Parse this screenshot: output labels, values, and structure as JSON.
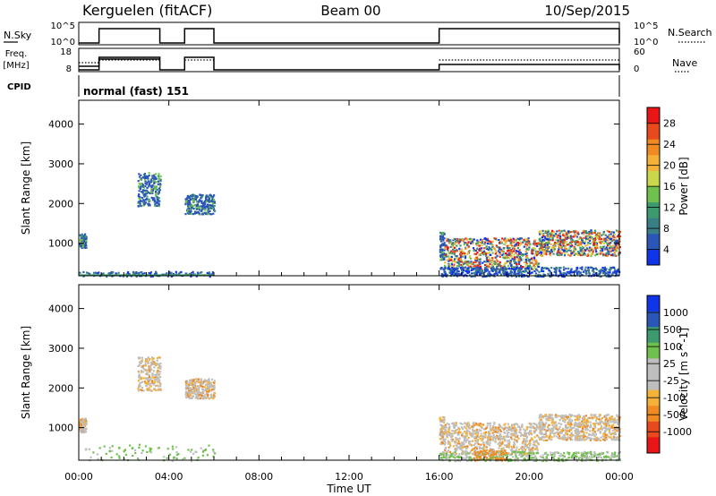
{
  "header": {
    "station": "Kerguelen (fitACF)",
    "beam": "Beam 00",
    "date": "10/Sep/2015"
  },
  "control": {
    "nsky_label": "N.Sky",
    "nsky_ticks": [
      "10^5",
      "10^0"
    ],
    "nsearch_label": "N.Search",
    "nsearch_ticks": [
      "10^5",
      "10^0"
    ],
    "freq_label_1": "Freq.",
    "freq_label_2": "[MHz]",
    "freq_ticks": [
      "18",
      "8"
    ],
    "nave_label": "Nave",
    "nave_ticks": [
      "60",
      "0"
    ],
    "cpid_label": "CPID",
    "cpid_value": "normal (fast) 151",
    "on_intervals_hours": [
      [
        0.9,
        3.6
      ],
      [
        4.7,
        6.0
      ],
      [
        16.0,
        24.0
      ]
    ]
  },
  "chart_data": [
    {
      "type": "heatmap",
      "name": "power",
      "ylabel": "Slant Range [km]",
      "yticks": [
        1000,
        2000,
        3000,
        4000
      ],
      "ylim": [
        180,
        4600
      ],
      "xlim_hours": [
        0,
        24
      ],
      "colorbar": {
        "label": "Power [dB]",
        "ticks": [
          "4",
          "8",
          "12",
          "16",
          "20",
          "24",
          "28"
        ],
        "colors": [
          "#1034e8",
          "#2a56b8",
          "#3a7f86",
          "#3d9a6e",
          "#6fc04c",
          "#c9d84a",
          "#f4b23a",
          "#f08a22",
          "#e84a1e",
          "#e81616"
        ]
      },
      "echo_regions": [
        {
          "t0": 0.0,
          "t1": 0.3,
          "r0": 900,
          "r1": 1250
        },
        {
          "t0": 2.6,
          "t1": 3.6,
          "r0": 1950,
          "r1": 2800
        },
        {
          "t0": 4.7,
          "t1": 6.0,
          "r0": 1750,
          "r1": 2250
        },
        {
          "t0": 16.0,
          "t1": 16.2,
          "r0": 600,
          "r1": 1300
        },
        {
          "t0": 16.2,
          "t1": 20.4,
          "r0": 350,
          "r1": 1150
        },
        {
          "t0": 20.4,
          "t1": 24.0,
          "r0": 700,
          "r1": 1350
        }
      ]
    },
    {
      "type": "heatmap",
      "name": "velocity",
      "ylabel": "Slant Range [km]",
      "yticks": [
        1000,
        2000,
        3000,
        4000
      ],
      "ylim": [
        180,
        4600
      ],
      "xlim_hours": [
        0,
        24
      ],
      "xlabel": "Time UT",
      "xticks": [
        "00:00",
        "04:00",
        "08:00",
        "12:00",
        "16:00",
        "20:00",
        "00:00"
      ],
      "colorbar": {
        "label": "Velocity [m s^-1]",
        "ticks": [
          "1000",
          "500",
          "100",
          "25",
          "-25",
          "-100",
          "-500",
          "-1000"
        ],
        "colors": [
          "#1034e8",
          "#2a56b8",
          "#3d9a6e",
          "#6fc04c",
          "#bebebe",
          "#bebebe",
          "#f4b23a",
          "#f08a22",
          "#e84a1e",
          "#e81616"
        ]
      }
    }
  ]
}
